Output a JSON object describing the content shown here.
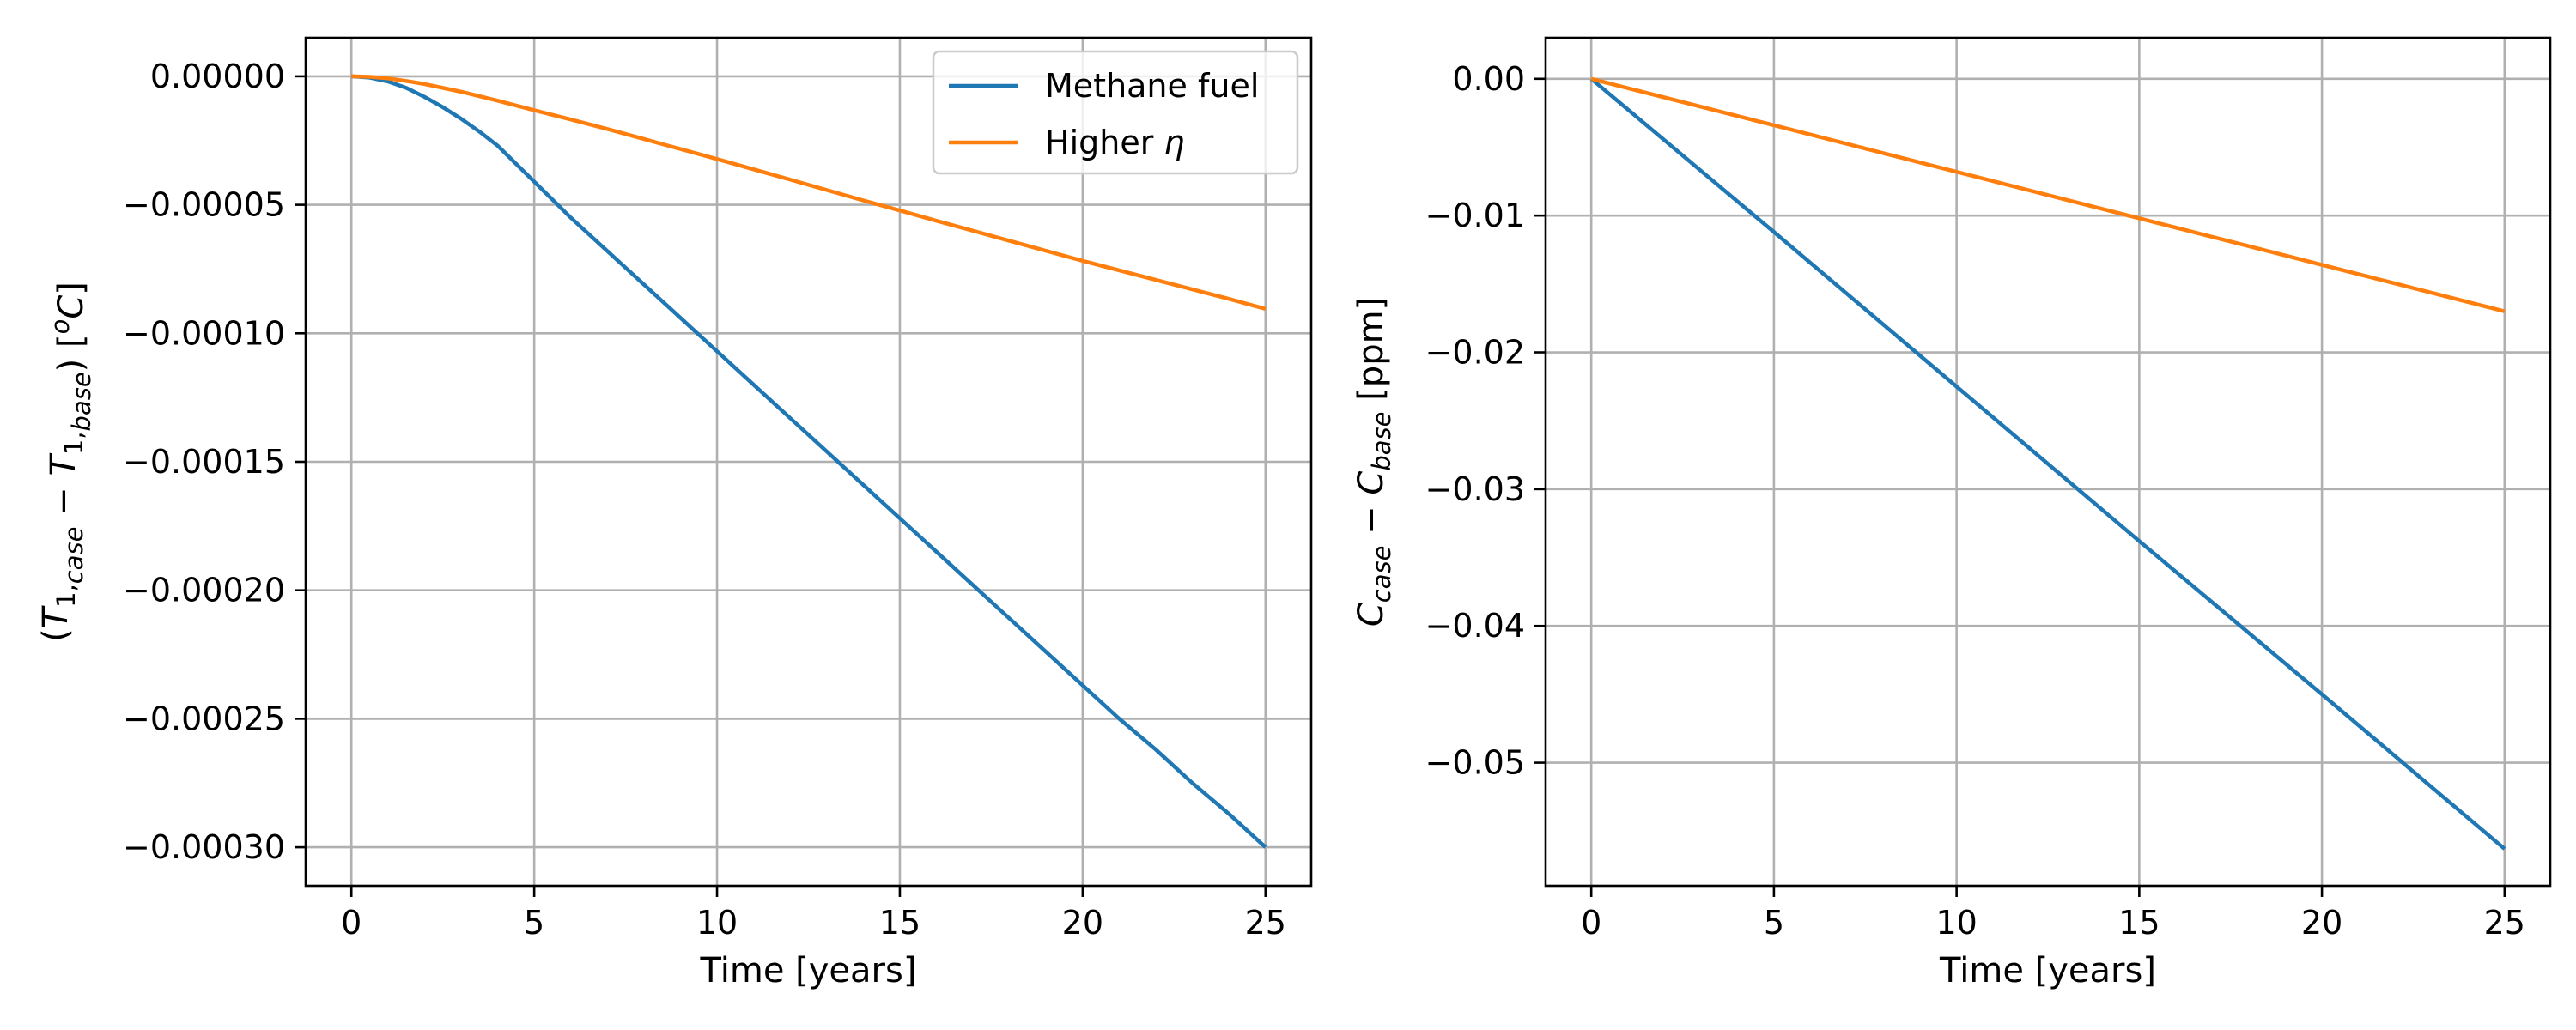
{
  "chart_data": [
    {
      "type": "line",
      "title": "",
      "xlabel": "Time [years]",
      "ylabel_parts": [
        {
          "t": "(",
          "s": "n"
        },
        {
          "t": "T",
          "s": "i"
        },
        {
          "t": "1,",
          "s": "sub"
        },
        {
          "t": "case",
          "s": "subi"
        },
        {
          "t": " − ",
          "s": "n"
        },
        {
          "t": "T",
          "s": "i"
        },
        {
          "t": "1,",
          "s": "sub"
        },
        {
          "t": "base",
          "s": "subi"
        },
        {
          "t": ") [",
          "s": "n"
        },
        {
          "t": "o",
          "s": "supi"
        },
        {
          "t": "C",
          "s": "i"
        },
        {
          "t": "]",
          "s": "n"
        }
      ],
      "xlim": [
        -1.25,
        26.25
      ],
      "ylim": [
        -0.000315,
        1.5e-05
      ],
      "xticks": [
        0,
        5,
        10,
        15,
        20,
        25
      ],
      "xtick_labels": [
        "0",
        "5",
        "10",
        "15",
        "20",
        "25"
      ],
      "yticks": [
        0,
        -5e-05,
        -0.0001,
        -0.00015,
        -0.0002,
        -0.00025,
        -0.0003
      ],
      "ytick_labels": [
        "0.00000",
        "−0.00005",
        "−0.00010",
        "−0.00015",
        "−0.00020",
        "−0.00025",
        "−0.00030"
      ],
      "grid": true,
      "legend": "upper-right",
      "series": [
        {
          "name": "Methane fuel",
          "label_parts": [
            {
              "t": "Methane fuel",
              "s": "n"
            }
          ],
          "color": "#1f77b4",
          "x": [
            0,
            0.5,
            1,
            1.5,
            2,
            2.5,
            3,
            3.5,
            4,
            5,
            6,
            7,
            8,
            9,
            10,
            11,
            12,
            13,
            14,
            15,
            16,
            17,
            18,
            19,
            20,
            21,
            22,
            23,
            24,
            25
          ],
          "y": [
            0,
            -5e-07,
            -2e-06,
            -4.5e-06,
            -8e-06,
            -1.2e-05,
            -1.65e-05,
            -2.15e-05,
            -2.7e-05,
            -4.1e-05,
            -5.5e-05,
            -6.8e-05,
            -8.1e-05,
            -9.4e-05,
            -0.000107,
            -0.00012,
            -0.000133,
            -0.000146,
            -0.000159,
            -0.000172,
            -0.000185,
            -0.000198,
            -0.000211,
            -0.000224,
            -0.000237,
            -0.00025,
            -0.000262,
            -0.000275,
            -0.000287,
            -0.0003
          ]
        },
        {
          "name": "Higher η",
          "label_parts": [
            {
              "t": "Higher ",
              "s": "n"
            },
            {
              "t": "η",
              "s": "i"
            }
          ],
          "color": "#ff7f0e",
          "x": [
            0,
            0.5,
            1,
            1.5,
            2,
            2.5,
            3,
            4,
            5,
            6,
            7,
            8,
            9,
            10,
            12,
            14,
            15,
            16,
            18,
            20,
            22,
            24,
            25
          ],
          "y": [
            0,
            -2e-07,
            -8e-07,
            -1.8e-06,
            -3e-06,
            -4.5e-06,
            -6e-06,
            -9.5e-06,
            -1.32e-05,
            -1.68e-05,
            -2.05e-05,
            -2.44e-05,
            -2.83e-05,
            -3.22e-05,
            -4.02e-05,
            -4.83e-05,
            -5.22e-05,
            -5.62e-05,
            -6.4e-05,
            -7.18e-05,
            -7.92e-05,
            -8.66e-05,
            -9.05e-05
          ]
        }
      ]
    },
    {
      "type": "line",
      "title": "",
      "xlabel": "Time [years]",
      "ylabel_parts": [
        {
          "t": "C",
          "s": "i"
        },
        {
          "t": "case",
          "s": "subi"
        },
        {
          "t": " − ",
          "s": "n"
        },
        {
          "t": "C",
          "s": "i"
        },
        {
          "t": "base",
          "s": "subi"
        },
        {
          "t": " [ppm]",
          "s": "n"
        }
      ],
      "xlim": [
        -1.25,
        26.25
      ],
      "ylim": [
        -0.059,
        0.003
      ],
      "xticks": [
        0,
        5,
        10,
        15,
        20,
        25
      ],
      "xtick_labels": [
        "0",
        "5",
        "10",
        "15",
        "20",
        "25"
      ],
      "yticks": [
        0,
        -0.01,
        -0.02,
        -0.03,
        -0.04,
        -0.05
      ],
      "ytick_labels": [
        "0.00",
        "−0.01",
        "−0.02",
        "−0.03",
        "−0.04",
        "−0.05"
      ],
      "grid": true,
      "legend": "none",
      "series": [
        {
          "color": "#1f77b4",
          "x": [
            0,
            5,
            10,
            15,
            20,
            25
          ],
          "y": [
            0,
            -0.0112,
            -0.0225,
            -0.0338,
            -0.045,
            -0.0563
          ]
        },
        {
          "color": "#ff7f0e",
          "x": [
            0,
            5,
            10,
            15,
            20,
            25
          ],
          "y": [
            0,
            -0.0034,
            -0.0068,
            -0.0102,
            -0.0136,
            -0.017
          ]
        }
      ]
    }
  ]
}
